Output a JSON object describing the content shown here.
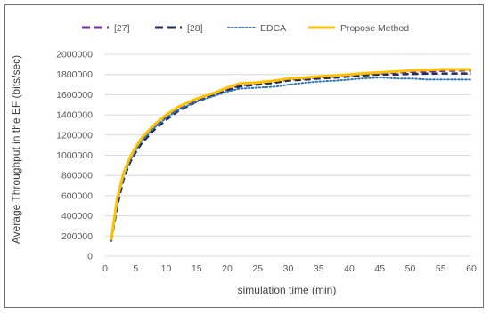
{
  "chart_data": {
    "type": "line",
    "title": "",
    "xlabel": "simulation time (min)",
    "ylabel": "Average Throughput in the  EF (bits/sec)",
    "xlim": [
      0,
      60
    ],
    "ylim": [
      0,
      2000000
    ],
    "x_ticks": [
      "0",
      "5",
      "10",
      "15",
      "20",
      "25",
      "30",
      "35",
      "40",
      "45",
      "50",
      "55",
      "60"
    ],
    "y_ticks": [
      "0",
      "200000",
      "400000",
      "600000",
      "800000",
      "1000000",
      "1200000",
      "1400000",
      "1600000",
      "1800000",
      "2000000"
    ],
    "grid": true,
    "legend_position": "top",
    "series": [
      {
        "name": "[27]",
        "color": "#7030a0",
        "style": "dashed",
        "x": [
          1,
          2,
          3,
          4,
          5,
          6,
          8,
          10,
          12,
          15,
          18,
          20,
          22,
          25,
          28,
          30,
          33,
          35,
          38,
          40,
          42,
          45,
          48,
          50,
          53,
          55,
          58,
          60
        ],
        "y": [
          150000,
          560000,
          800000,
          950000,
          1060000,
          1150000,
          1280000,
          1380000,
          1460000,
          1540000,
          1610000,
          1650000,
          1690000,
          1710000,
          1730000,
          1750000,
          1760000,
          1770000,
          1780000,
          1790000,
          1800000,
          1810000,
          1820000,
          1825000,
          1830000,
          1835000,
          1838000,
          1840000
        ]
      },
      {
        "name": "[28]",
        "color": "#1f2d5c",
        "style": "dashed",
        "x": [
          1,
          2,
          3,
          4,
          5,
          6,
          8,
          10,
          12,
          15,
          18,
          20,
          22,
          25,
          28,
          30,
          33,
          35,
          38,
          40,
          42,
          45,
          48,
          50,
          53,
          55,
          58,
          60
        ],
        "y": [
          150000,
          500000,
          760000,
          920000,
          1030000,
          1120000,
          1250000,
          1350000,
          1440000,
          1530000,
          1600000,
          1640000,
          1680000,
          1700000,
          1720000,
          1740000,
          1750000,
          1760000,
          1770000,
          1780000,
          1790000,
          1800000,
          1800000,
          1805000,
          1808000,
          1810000,
          1810000,
          1810000
        ]
      },
      {
        "name": "EDCA",
        "color": "#2e75b6",
        "style": "dotted",
        "x": [
          1,
          2,
          3,
          4,
          5,
          6,
          8,
          10,
          12,
          15,
          18,
          20,
          22,
          25,
          28,
          30,
          33,
          35,
          38,
          40,
          42,
          45,
          48,
          50,
          53,
          55,
          58,
          60
        ],
        "y": [
          150000,
          540000,
          790000,
          940000,
          1050000,
          1140000,
          1270000,
          1370000,
          1450000,
          1530000,
          1590000,
          1630000,
          1660000,
          1670000,
          1680000,
          1700000,
          1720000,
          1730000,
          1740000,
          1750000,
          1760000,
          1770000,
          1760000,
          1760000,
          1750000,
          1750000,
          1750000,
          1750000
        ]
      },
      {
        "name": "Propose Method",
        "color": "#ffc000",
        "style": "solid",
        "x": [
          1,
          2,
          3,
          4,
          5,
          6,
          8,
          10,
          12,
          15,
          18,
          20,
          22,
          25,
          28,
          30,
          33,
          35,
          38,
          40,
          42,
          45,
          48,
          50,
          53,
          55,
          58,
          60
        ],
        "y": [
          160000,
          580000,
          820000,
          970000,
          1080000,
          1170000,
          1300000,
          1400000,
          1480000,
          1560000,
          1620000,
          1670000,
          1710000,
          1720000,
          1740000,
          1760000,
          1770000,
          1780000,
          1790000,
          1800000,
          1810000,
          1820000,
          1830000,
          1840000,
          1845000,
          1850000,
          1850000,
          1850000
        ]
      }
    ]
  }
}
